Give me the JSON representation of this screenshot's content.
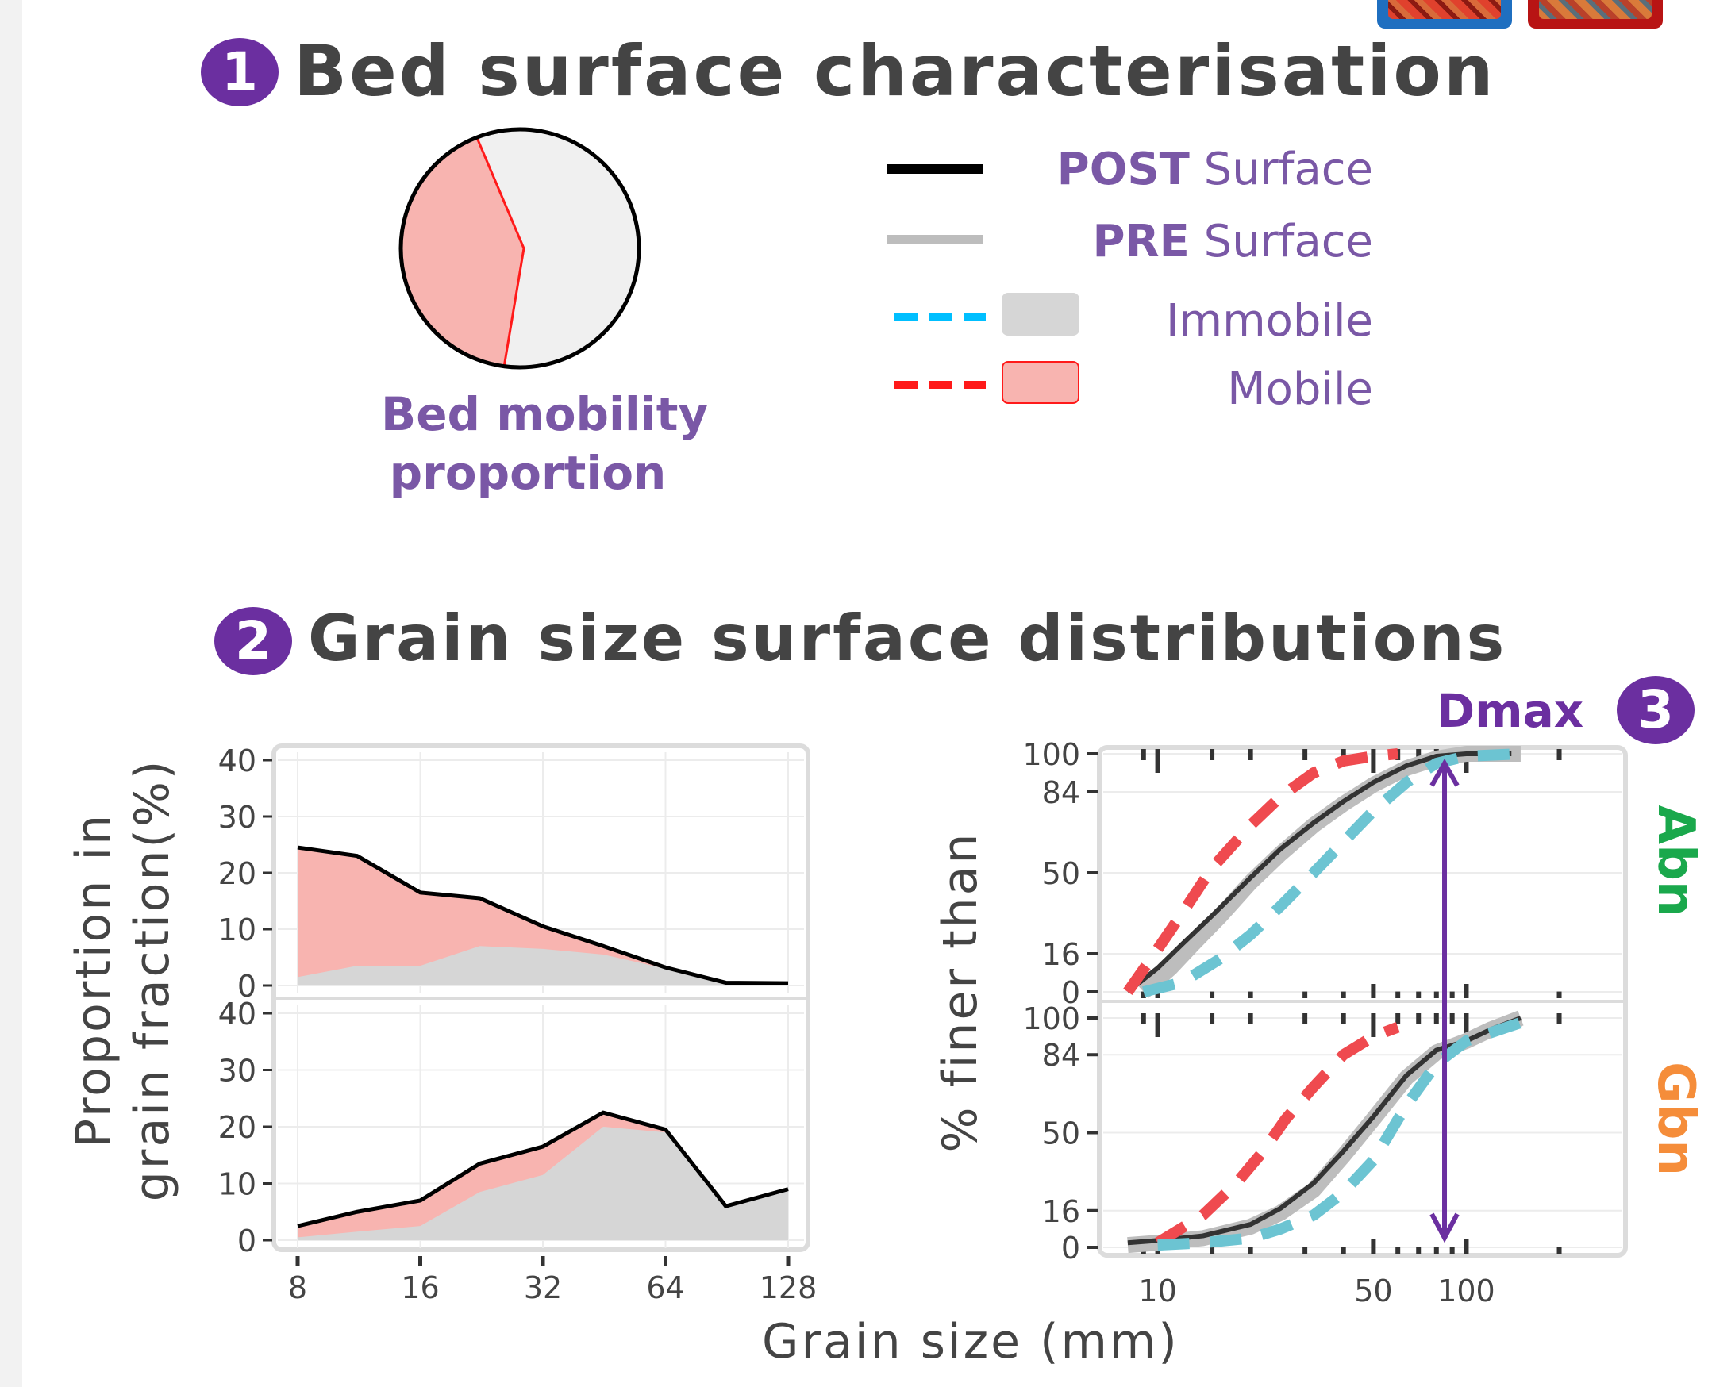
{
  "section1": {
    "number": "1",
    "title": "Bed surface characterisation",
    "pie": {
      "label_line1": "Bed mobility",
      "label_line2": "proportion",
      "slices": [
        {
          "name": "Mobile",
          "fraction": 0.42,
          "color": "#f8b4b0",
          "edge": "#ff1a1a"
        },
        {
          "name": "Immobile",
          "fraction": 0.58,
          "color": "#f0f0f0",
          "edge": "#00bfff"
        }
      ]
    },
    "legend": [
      {
        "key": "post",
        "strong": "POST",
        "rest": " Surface",
        "color": "#000000"
      },
      {
        "key": "pre",
        "strong": "PRE",
        "rest": " Surface",
        "color": "#bbbbbb"
      },
      {
        "key": "immobile",
        "label": "Immobile",
        "line_color": "#00bfff",
        "fill": "#d6d6d6"
      },
      {
        "key": "mobile",
        "label": "Mobile",
        "line_color": "#ff1a1a",
        "fill": "#f8b4b0"
      }
    ]
  },
  "section2": {
    "number": "2",
    "title": "Grain size surface distributions",
    "xlabel": "Grain size (mm)"
  },
  "section3": {
    "number": "3",
    "dmax_label": "Dmax",
    "dmax_color": "#6b2fa0",
    "dmax_value": 85
  },
  "colors": {
    "mobile_fill": "#f8b4b0",
    "immobile_fill": "#d6d6d6",
    "post_line": "#000000",
    "pre_line": "#bdbdbd",
    "mobile_dash": "#ef4a4f",
    "immobile_dash": "#6cc4d2",
    "abn_color": "#1aa84c",
    "gbn_color": "#f58d3a"
  },
  "chart_data": [
    {
      "type": "area",
      "ylabel_line1": "Proportion in",
      "ylabel_line2": "grain fraction(%)",
      "x_scale": "log2",
      "x_ticks": [
        8,
        16,
        32,
        64,
        128
      ],
      "y_ticks": [
        0,
        10,
        20,
        30,
        40
      ],
      "ylim": [
        0,
        40
      ],
      "panels": [
        {
          "name": "Abn",
          "x": [
            8,
            11.2,
            16,
            22.4,
            32,
            45,
            64,
            90,
            128
          ],
          "total": [
            24.5,
            23,
            16.5,
            15.5,
            10.5,
            7,
            3.2,
            0.5,
            0.4
          ],
          "immobile": [
            1.5,
            3.5,
            3.5,
            7,
            6.5,
            5.5,
            3,
            0.5,
            0.4
          ]
        },
        {
          "name": "Gbn",
          "x": [
            8,
            11.2,
            16,
            22.4,
            32,
            45,
            64,
            90,
            128
          ],
          "total": [
            2.5,
            5,
            7,
            13.5,
            16.5,
            22.5,
            19.5,
            6,
            9
          ],
          "immobile": [
            0.5,
            1.5,
            2.5,
            8.5,
            11.5,
            20,
            19,
            6,
            9
          ]
        }
      ]
    },
    {
      "type": "line",
      "ylabel": "% finer than",
      "x_scale": "log10",
      "x_ticks": [
        10,
        50,
        100
      ],
      "y_ticks": [
        0,
        16,
        50,
        84,
        100
      ],
      "ylim": [
        0,
        100
      ],
      "panels": [
        {
          "name": "Abn",
          "series": [
            {
              "name": "POST",
              "x": [
                8,
                10,
                12,
                15,
                20,
                25,
                32,
                40,
                50,
                64,
                80,
                100,
                140
              ],
              "y": [
                0,
                10,
                20,
                32,
                48,
                60,
                71,
                80,
                88,
                95,
                99,
                100,
                100
              ]
            },
            {
              "name": "PRE",
              "x": [
                9,
                11,
                13,
                16,
                20,
                25,
                32,
                40,
                50,
                64,
                80,
                100,
                150
              ],
              "y": [
                0,
                10,
                20,
                32,
                46,
                58,
                70,
                79,
                87,
                94,
                98,
                100,
                100
              ]
            },
            {
              "name": "Mobile",
              "x": [
                8,
                10,
                12,
                15,
                20,
                25,
                32,
                40,
                50,
                60
              ],
              "y": [
                0,
                18,
                33,
                52,
                70,
                82,
                92,
                97,
                99,
                100
              ]
            },
            {
              "name": "Immobile",
              "x": [
                9,
                12,
                16,
                20,
                25,
                32,
                40,
                50,
                64,
                80,
                100,
                150
              ],
              "y": [
                0,
                4,
                14,
                24,
                36,
                50,
                63,
                76,
                88,
                96,
                99,
                100
              ]
            }
          ]
        },
        {
          "name": "Gbn",
          "series": [
            {
              "name": "POST",
              "x": [
                8,
                10,
                14,
                20,
                25,
                32,
                40,
                50,
                64,
                80,
                100,
                120,
                150
              ],
              "y": [
                2,
                3,
                5,
                10,
                17,
                28,
                42,
                57,
                75,
                86,
                90,
                95,
                100
              ]
            },
            {
              "name": "PRE",
              "x": [
                8,
                10,
                14,
                20,
                25,
                32,
                40,
                50,
                64,
                80,
                100,
                120,
                150
              ],
              "y": [
                1,
                2,
                4,
                9,
                15,
                25,
                40,
                56,
                74,
                85,
                90,
                95,
                100
              ]
            },
            {
              "name": "Mobile",
              "x": [
                10,
                14,
                18,
                22,
                26,
                32,
                40,
                50,
                60
              ],
              "y": [
                2,
                14,
                28,
                42,
                56,
                70,
                84,
                92,
                96
              ]
            },
            {
              "name": "Immobile",
              "x": [
                10,
                14,
                20,
                25,
                32,
                40,
                50,
                64,
                80,
                100,
                150
              ],
              "y": [
                1,
                2,
                4,
                8,
                14,
                24,
                38,
                62,
                80,
                90,
                98
              ]
            }
          ]
        }
      ]
    }
  ]
}
